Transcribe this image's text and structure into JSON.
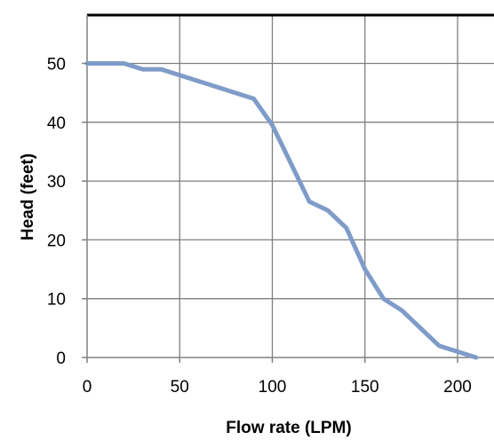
{
  "chart_data": {
    "type": "line",
    "title": "",
    "xlabel": "Flow rate (LPM)",
    "ylabel": "Head (feet)",
    "xlim": [
      0,
      210
    ],
    "ylim": [
      0,
      57
    ],
    "x_ticks": [
      "0",
      "50",
      "100",
      "150",
      "200"
    ],
    "y_ticks": [
      "0",
      "10",
      "20",
      "30",
      "40",
      "50"
    ],
    "grid": true,
    "legend": "none",
    "series_color": "#7f9cc9",
    "series": [
      {
        "x": [
          0,
          10,
          20,
          30,
          40,
          60,
          90,
          100,
          110,
          120,
          130,
          140,
          150,
          160,
          170,
          180,
          190,
          200,
          210
        ],
        "y": [
          50,
          50,
          50,
          49,
          49,
          47,
          44,
          39.5,
          33,
          26.5,
          25,
          22,
          15,
          10,
          8,
          5,
          2,
          1,
          0
        ]
      }
    ]
  }
}
